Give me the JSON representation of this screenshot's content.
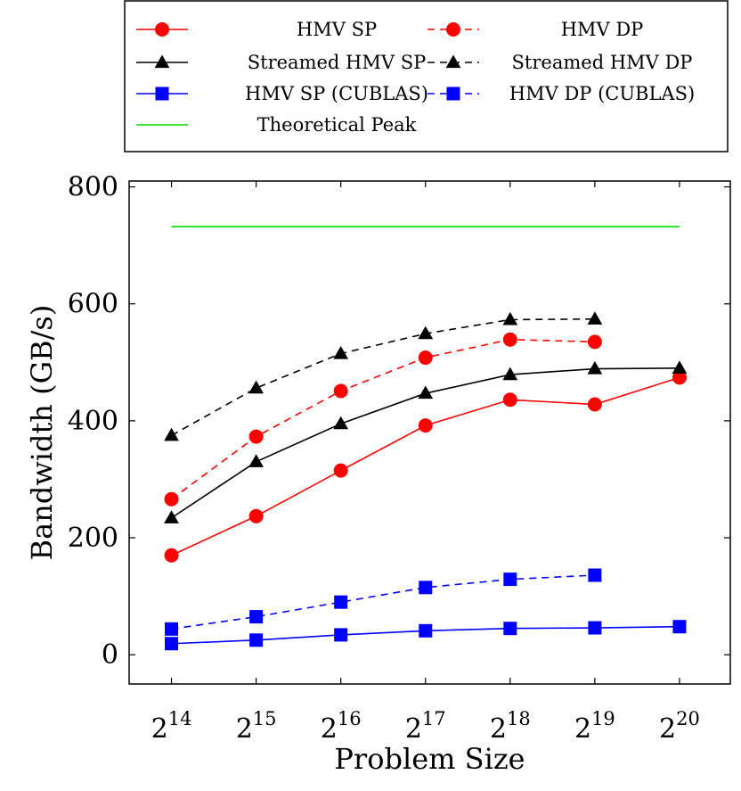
{
  "chart_data": {
    "type": "line",
    "title": "",
    "xlabel": "Problem Size",
    "ylabel": "Bandwidth (GB/s)",
    "x": [
      14,
      15,
      16,
      17,
      18,
      19,
      20
    ],
    "x_tick_labels": [
      {
        "base": "2",
        "exp": "14"
      },
      {
        "base": "2",
        "exp": "15"
      },
      {
        "base": "2",
        "exp": "16"
      },
      {
        "base": "2",
        "exp": "17"
      },
      {
        "base": "2",
        "exp": "18"
      },
      {
        "base": "2",
        "exp": "19"
      },
      {
        "base": "2",
        "exp": "20"
      }
    ],
    "xlim": [
      13.5,
      20.6
    ],
    "ylim": [
      -50,
      810
    ],
    "y_ticks": [
      0,
      200,
      400,
      600,
      800
    ],
    "grid": false,
    "legend_position": "top",
    "series": [
      {
        "name": "HMV SP",
        "color": "#ff0000",
        "dash": "solid",
        "marker": "circle",
        "x": [
          14,
          15,
          16,
          17,
          18,
          19,
          20
        ],
        "values": [
          170,
          237,
          315,
          392,
          436,
          428,
          474
        ]
      },
      {
        "name": "HMV DP",
        "color": "#ff0000",
        "dash": "dashed",
        "marker": "circle",
        "x": [
          14,
          15,
          16,
          17,
          18,
          19
        ],
        "values": [
          266,
          373,
          451,
          508,
          539,
          535
        ]
      },
      {
        "name": "Streamed HMV SP",
        "color": "#000000",
        "dash": "solid",
        "marker": "triangle",
        "x": [
          14,
          15,
          16,
          17,
          18,
          19,
          20
        ],
        "values": [
          234,
          330,
          395,
          447,
          479,
          489,
          490
        ]
      },
      {
        "name": "Streamed HMV DP",
        "color": "#000000",
        "dash": "dashed",
        "marker": "triangle",
        "x": [
          14,
          15,
          16,
          17,
          18,
          19
        ],
        "values": [
          375,
          456,
          515,
          549,
          573,
          574
        ]
      },
      {
        "name": "HMV SP (CUBLAS)",
        "color": "#0000ff",
        "dash": "solid",
        "marker": "square",
        "x": [
          14,
          15,
          16,
          17,
          18,
          19,
          20
        ],
        "values": [
          19,
          25,
          34,
          41,
          45,
          46,
          48
        ]
      },
      {
        "name": "HMV DP (CUBLAS)",
        "color": "#0000ff",
        "dash": "dashed",
        "marker": "square",
        "x": [
          14,
          15,
          16,
          17,
          18,
          19
        ],
        "values": [
          44,
          65,
          90,
          115,
          129,
          136
        ]
      },
      {
        "name": "Theoretical Peak",
        "color": "#00dd00",
        "dash": "solid",
        "marker": "none",
        "x": [
          14,
          20
        ],
        "values": [
          732,
          732
        ]
      }
    ]
  }
}
